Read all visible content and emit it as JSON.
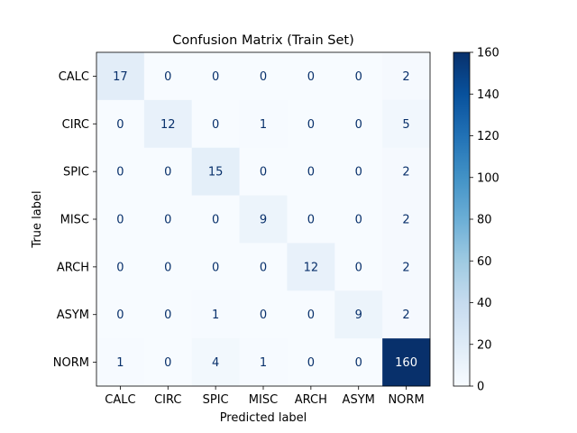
{
  "chart_data": {
    "type": "heatmap",
    "title": "Confusion Matrix (Train Set)",
    "xlabel": "Predicted label",
    "ylabel": "True label",
    "x_categories": [
      "CALC",
      "CIRC",
      "SPIC",
      "MISC",
      "ARCH",
      "ASYM",
      "NORM"
    ],
    "y_categories": [
      "CALC",
      "CIRC",
      "SPIC",
      "MISC",
      "ARCH",
      "ASYM",
      "NORM"
    ],
    "values": [
      [
        17,
        0,
        0,
        0,
        0,
        0,
        2
      ],
      [
        0,
        12,
        0,
        1,
        0,
        0,
        5
      ],
      [
        0,
        0,
        15,
        0,
        0,
        0,
        2
      ],
      [
        0,
        0,
        0,
        9,
        0,
        0,
        2
      ],
      [
        0,
        0,
        0,
        0,
        12,
        0,
        2
      ],
      [
        0,
        0,
        1,
        0,
        0,
        9,
        2
      ],
      [
        1,
        0,
        4,
        1,
        0,
        0,
        160
      ]
    ],
    "colormap": "Blues",
    "colorbar": {
      "range": [
        0,
        160
      ],
      "ticks": [
        0,
        20,
        40,
        60,
        80,
        100,
        120,
        140,
        160
      ]
    },
    "text_colors": {
      "dark_cells": "#08306b",
      "light_cells": "#ffffff"
    }
  }
}
